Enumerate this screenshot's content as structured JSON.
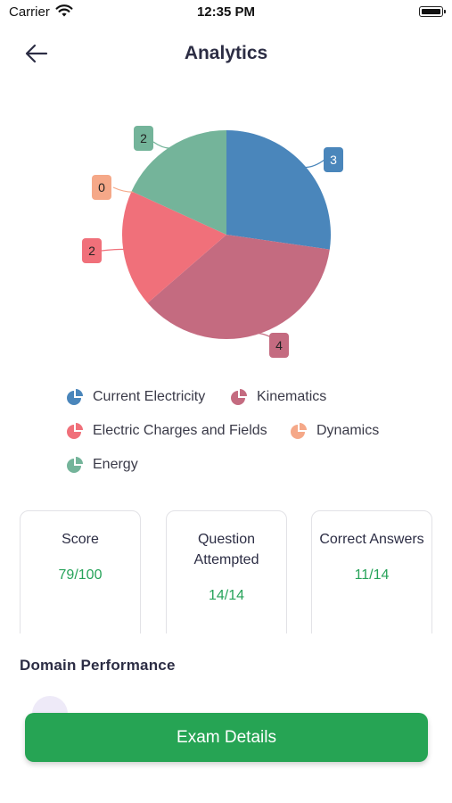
{
  "status_bar": {
    "carrier": "Carrier",
    "time": "12:35 PM"
  },
  "header": {
    "title": "Analytics",
    "back_icon": "arrow-left-icon"
  },
  "chart_data": {
    "type": "pie",
    "categories": [
      "Current Electricity",
      "Kinematics",
      "Electric Charges and Fields",
      "Dynamics",
      "Energy"
    ],
    "values": [
      3,
      4,
      2,
      0,
      2
    ],
    "data_labels": [
      "3",
      "4",
      "2",
      "0",
      "2"
    ],
    "colors": [
      "#4a86bb",
      "#c46b80",
      "#f0707a",
      "#f5a888",
      "#74b49a"
    ],
    "legend_placement": "bottom"
  },
  "stats": [
    {
      "title": "Score",
      "value": "79/100"
    },
    {
      "title": "Question Attempted",
      "value": "14/14"
    },
    {
      "title": "Correct Answers",
      "value": "11/14"
    }
  ],
  "domain_section": {
    "title": "Domain Performance"
  },
  "actions": {
    "exam_details_label": "Exam Details"
  },
  "colors": {
    "accent_green": "#26a454",
    "title_navy": "#2c2d44"
  }
}
